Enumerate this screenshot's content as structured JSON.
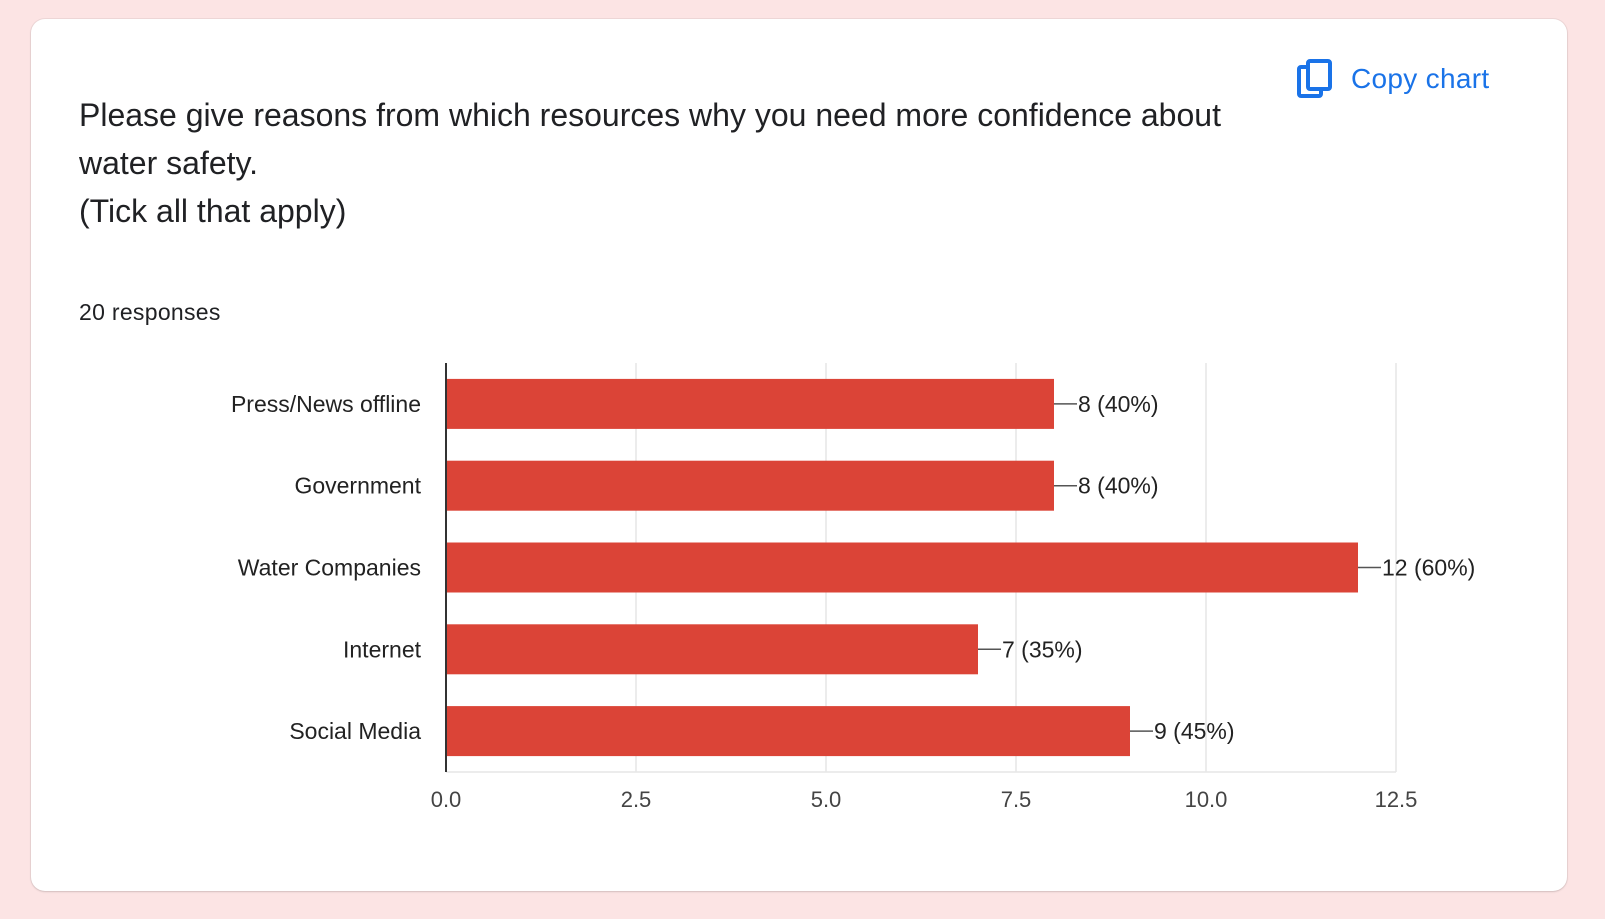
{
  "card": {
    "title_lines": [
      "Please give reasons from which resources why you need more confidence about",
      "water safety.",
      "(Tick all that apply)"
    ],
    "copy_button": {
      "label": "Copy chart",
      "icon": "copy-icon"
    },
    "responses_text": "20 responses"
  },
  "colors": {
    "bar": "#db4437",
    "accent": "#1a73e8",
    "page_background": "#fce4e4"
  },
  "chart_data": {
    "type": "bar",
    "orientation": "horizontal",
    "categories": [
      "Press/News offline",
      "Government",
      "Water Companies",
      "Internet",
      "Social Media"
    ],
    "values": [
      8,
      8,
      12,
      7,
      9
    ],
    "data_labels": [
      "8 (40%)",
      "8 (40%)",
      "12 (60%)",
      "7 (35%)",
      "9 (45%)"
    ],
    "xlim": [
      0,
      12.5
    ],
    "x_ticks": [
      "0.0",
      "2.5",
      "5.0",
      "7.5",
      "10.0",
      "12.5"
    ],
    "grid": true,
    "legend": "none"
  }
}
